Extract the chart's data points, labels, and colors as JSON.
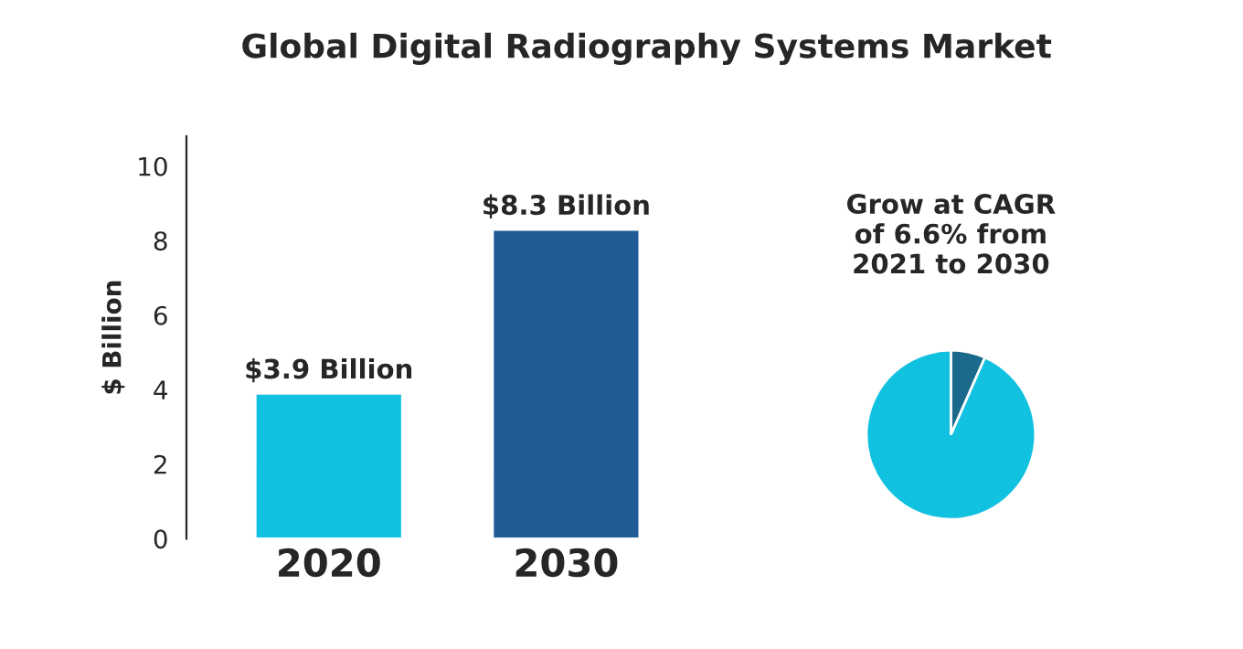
{
  "chart_data": [
    {
      "type": "bar",
      "title": "Global Digital Radiography Systems Market",
      "ylabel": "$ Billion",
      "categories": [
        "2020",
        "2030"
      ],
      "values": [
        3.9,
        8.3
      ],
      "value_labels": [
        "$3.9 Billion",
        "$8.3 Billion"
      ],
      "colors": [
        "#10c1e0",
        "#1f5b94"
      ],
      "ylim": [
        0,
        10.8
      ],
      "yticks": [
        0,
        2,
        4,
        6,
        8,
        10
      ],
      "grid": false,
      "legend": false
    },
    {
      "type": "pie",
      "title": "Grow at CAGR\nof 6.6% from\n2021 to 2030",
      "categories": [
        null,
        null
      ],
      "values": [
        6.6,
        93.4
      ],
      "colors": [
        "#1a6a8c",
        "#10c1e0"
      ],
      "legend": false
    }
  ]
}
